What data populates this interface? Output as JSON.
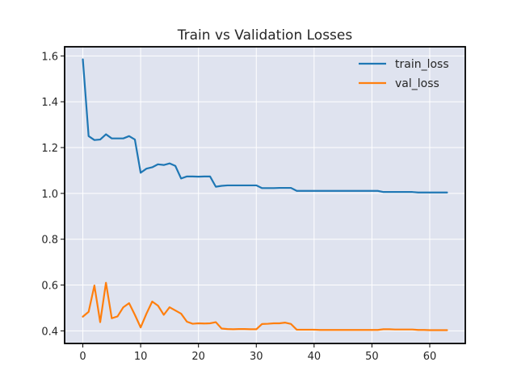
{
  "chart_data": {
    "type": "line",
    "title": "Train vs Validation Losses",
    "xlabel": "",
    "ylabel": "",
    "xlim": [
      -3.15,
      66.15
    ],
    "ylim": [
      0.345,
      1.64
    ],
    "xticks": [
      0,
      10,
      20,
      30,
      40,
      50,
      60
    ],
    "yticks": [
      0.4,
      0.6,
      0.8,
      1.0,
      1.2,
      1.4,
      1.6
    ],
    "xtick_labels": [
      "0",
      "10",
      "20",
      "30",
      "40",
      "50",
      "60"
    ],
    "ytick_labels": [
      "0.4",
      "0.6",
      "0.8",
      "1.0",
      "1.2",
      "1.4",
      "1.6"
    ],
    "grid": true,
    "legend_position": "top-right",
    "background_color": "#dfe3ef",
    "series": [
      {
        "name": "train_loss",
        "color": "#1f77b4",
        "values": [
          1.585,
          1.25,
          1.233,
          1.235,
          1.258,
          1.24,
          1.24,
          1.24,
          1.25,
          1.235,
          1.09,
          1.108,
          1.114,
          1.127,
          1.124,
          1.131,
          1.12,
          1.065,
          1.074,
          1.074,
          1.073,
          1.074,
          1.074,
          1.029,
          1.033,
          1.035,
          1.035,
          1.035,
          1.035,
          1.035,
          1.035,
          1.023,
          1.023,
          1.023,
          1.024,
          1.024,
          1.024,
          1.011,
          1.011,
          1.011,
          1.011,
          1.011,
          1.011,
          1.011,
          1.011,
          1.011,
          1.011,
          1.011,
          1.011,
          1.011,
          1.011,
          1.011,
          1.006,
          1.006,
          1.006,
          1.006,
          1.006,
          1.006,
          1.004,
          1.004,
          1.004,
          1.004,
          1.004,
          1.004
        ]
      },
      {
        "name": "val_loss",
        "color": "#ff7f0e",
        "values": [
          0.462,
          0.483,
          0.598,
          0.438,
          0.61,
          0.455,
          0.463,
          0.503,
          0.521,
          0.47,
          0.415,
          0.475,
          0.528,
          0.51,
          0.47,
          0.503,
          0.489,
          0.475,
          0.44,
          0.431,
          0.433,
          0.432,
          0.433,
          0.438,
          0.41,
          0.408,
          0.407,
          0.408,
          0.408,
          0.407,
          0.407,
          0.43,
          0.431,
          0.433,
          0.433,
          0.436,
          0.43,
          0.405,
          0.405,
          0.405,
          0.405,
          0.404,
          0.404,
          0.404,
          0.404,
          0.404,
          0.404,
          0.404,
          0.404,
          0.404,
          0.404,
          0.404,
          0.407,
          0.407,
          0.406,
          0.406,
          0.406,
          0.406,
          0.404,
          0.404,
          0.403,
          0.403,
          0.403,
          0.403
        ]
      }
    ]
  }
}
